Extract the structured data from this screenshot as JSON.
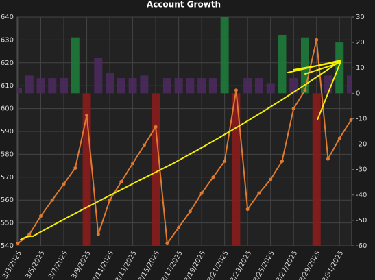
{
  "chart_data": {
    "type": "combo",
    "title": "Account Growth",
    "categories": [
      "3/3/2025",
      null,
      "3/5/2025",
      null,
      "3/7/2025",
      null,
      "3/9/2025",
      null,
      "3/11/2025",
      null,
      "3/13/2025",
      null,
      "3/15/2025",
      null,
      "3/17/2025",
      null,
      "3/19/2025",
      null,
      "3/21/2025",
      null,
      "3/23/2025",
      null,
      "3/25/2025",
      null,
      "3/27/2025",
      null,
      "3/29/2025",
      null,
      "3/31/2025",
      null
    ],
    "series": [
      {
        "type": "bar",
        "axis": "y2",
        "colors": [
          "#4b2a5e",
          "#4b2a5e",
          "#4b2a5e",
          "#4b2a5e",
          "#4b2a5e",
          "#1e7a3a",
          "#8a1c1c",
          "#4b2a5e",
          "#4b2a5e",
          "#4b2a5e",
          "#4b2a5e",
          "#4b2a5e",
          "#8a1c1c",
          "#4b2a5e",
          "#4b2a5e",
          "#4b2a5e",
          "#4b2a5e",
          "#4b2a5e",
          "#1e7a3a",
          "#8a1c1c",
          "#4b2a5e",
          "#4b2a5e",
          "#4b2a5e",
          "#1e7a3a",
          "#4b2a5e",
          "#1e7a3a",
          "#8a1c1c",
          "#4b2a5e",
          "#1e7a3a",
          "#4b2a5e"
        ],
        "values": [
          2,
          7,
          6,
          6,
          6,
          22,
          -60,
          14,
          8,
          6,
          6,
          7,
          -60,
          6,
          6,
          6,
          6,
          6,
          30,
          -60,
          6,
          6,
          4,
          23,
          6,
          22,
          -60,
          7,
          20,
          7
        ]
      },
      {
        "type": "line",
        "axis": "y",
        "color": "#e07a30",
        "values": [
          541,
          545,
          553,
          560,
          567,
          574,
          597,
          545,
          560,
          568,
          576,
          584,
          592,
          541,
          548,
          555,
          563,
          570,
          577,
          608,
          556,
          563,
          569,
          577,
          600,
          608,
          630,
          578,
          587,
          595
        ]
      }
    ],
    "ylim": [
      540,
      640
    ],
    "yticks": [
      540,
      550,
      560,
      570,
      580,
      590,
      600,
      610,
      620,
      630,
      640
    ],
    "y2lim": [
      -60,
      30
    ],
    "y2ticks": [
      -60,
      -50,
      -40,
      -30,
      -20,
      -10,
      0,
      10,
      20,
      30
    ],
    "grid": true
  }
}
